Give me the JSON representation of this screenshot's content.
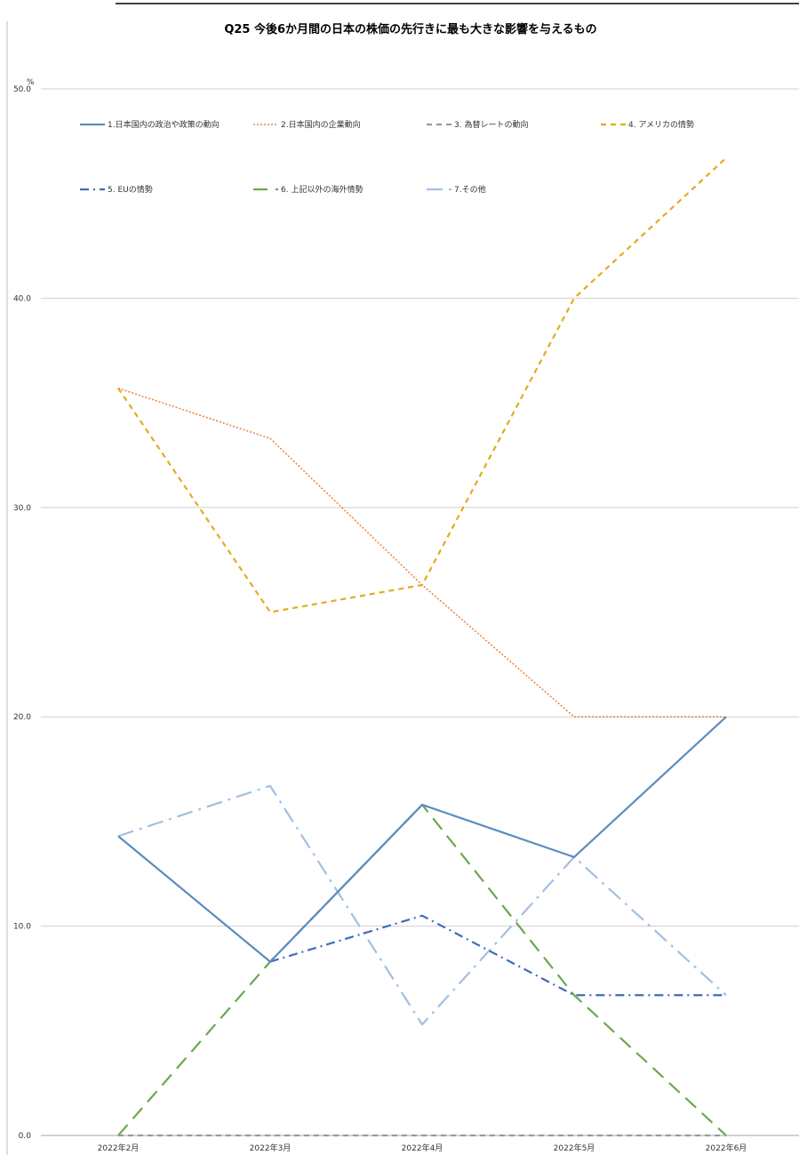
{
  "chart_data": {
    "type": "line",
    "title": "Q25 今後6か月間の日本の株価の先行きに最も大きな影響を与えるもの",
    "ylabel": "%",
    "ylim": [
      0,
      50
    ],
    "yticks": [
      "0.0",
      "10.0",
      "20.0",
      "30.0",
      "40.0",
      "50.0"
    ],
    "grid": true,
    "legend_position": "top",
    "categories": [
      "2022年2月",
      "2022年3月",
      "2022年4月",
      "2022年5月",
      "2022年6月"
    ],
    "series": [
      {
        "name": "1.日本国内の政治や政策の動向",
        "values": [
          14.3,
          8.3,
          15.8,
          13.3,
          20.0
        ],
        "color": "#5b8cc0",
        "dash": "solid"
      },
      {
        "name": "2.日本国内の企業動向",
        "values": [
          35.7,
          33.3,
          26.3,
          20.0,
          20.0
        ],
        "color": "#e8823a",
        "dash": "dot"
      },
      {
        "name": "3. 為替レートの動向",
        "values": [
          0.0,
          0.0,
          0.0,
          0.0,
          0.0
        ],
        "color": "#9a9a9a",
        "dash": "dash"
      },
      {
        "name": "4. アメリカの情勢",
        "values": [
          35.7,
          25.0,
          26.3,
          40.0,
          46.7
        ],
        "color": "#e2ac1c",
        "dash": "dash"
      },
      {
        "name": "5. EUの情勢",
        "values": [
          null,
          8.3,
          10.5,
          6.7,
          6.7
        ],
        "color": "#3f6db5",
        "dash": "dashdot"
      },
      {
        "name": "6. 上記以外の海外情勢",
        "values": [
          0.0,
          8.3,
          15.8,
          6.7,
          0.0
        ],
        "color": "#6aa84f",
        "dash": "longdash"
      },
      {
        "name": "7.その他",
        "values": [
          14.3,
          16.7,
          5.3,
          13.3,
          6.7
        ],
        "color": "#a3bfe0",
        "dash": "longdashdot"
      }
    ]
  }
}
